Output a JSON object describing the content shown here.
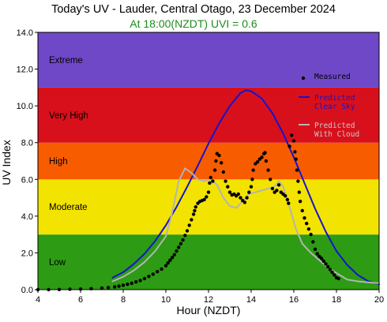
{
  "chart_data": {
    "type": "scatter",
    "title": "Today's UV - Lauder, Central Otago, 23 December 2024",
    "subtitle": "At 18:00(NZDT) UVI =  0.6",
    "xlabel": "Hour (NZDT)",
    "ylabel": "UV Index",
    "xlim": [
      4,
      20
    ],
    "ylim": [
      0,
      14
    ],
    "x_ticks": [
      4,
      6,
      8,
      10,
      12,
      14,
      16,
      18,
      20
    ],
    "y_ticks": [
      "0.0",
      "2.0",
      "4.0",
      "6.0",
      "8.0",
      "10.0",
      "12.0",
      "14.0"
    ],
    "bands": [
      {
        "label": "Low",
        "from": 0,
        "to": 3,
        "color": "#2d9b14"
      },
      {
        "label": "Moderate",
        "from": 3,
        "to": 6,
        "color": "#f2e300"
      },
      {
        "label": "High",
        "from": 6,
        "to": 8,
        "color": "#f85c00"
      },
      {
        "label": "Very High",
        "from": 8,
        "to": 11,
        "color": "#d8101c"
      },
      {
        "label": "Extreme",
        "from": 11,
        "to": 14,
        "color": "#6f48c8"
      }
    ],
    "legend": {
      "position": "top-right",
      "entries": [
        {
          "label": [
            "Measured"
          ],
          "color": "#000000",
          "kind": "marker"
        },
        {
          "label": [
            "Predicted",
            "Clear Sky"
          ],
          "color": "#1414d0",
          "kind": "line"
        },
        {
          "label": [
            "Predicted",
            "With Cloud"
          ],
          "color": "#b4b4b4",
          "kind": "line"
        }
      ]
    },
    "series": [
      {
        "name": "Measured",
        "kind": "points",
        "color": "#000000",
        "points": [
          [
            4.0,
            0.0
          ],
          [
            4.5,
            0.0
          ],
          [
            5.0,
            0.01
          ],
          [
            5.5,
            0.02
          ],
          [
            6.0,
            0.03
          ],
          [
            6.5,
            0.05
          ],
          [
            7.0,
            0.08
          ],
          [
            7.3,
            0.11
          ],
          [
            7.6,
            0.15
          ],
          [
            7.8,
            0.19
          ],
          [
            8.0,
            0.24
          ],
          [
            8.2,
            0.29
          ],
          [
            8.4,
            0.35
          ],
          [
            8.6,
            0.42
          ],
          [
            8.8,
            0.5
          ],
          [
            9.0,
            0.6
          ],
          [
            9.2,
            0.72
          ],
          [
            9.4,
            0.84
          ],
          [
            9.6,
            0.98
          ],
          [
            9.8,
            1.12
          ],
          [
            10.0,
            1.3
          ],
          [
            10.1,
            1.45
          ],
          [
            10.2,
            1.6
          ],
          [
            10.3,
            1.75
          ],
          [
            10.4,
            1.9
          ],
          [
            10.5,
            2.1
          ],
          [
            10.6,
            2.3
          ],
          [
            10.7,
            2.5
          ],
          [
            10.8,
            2.7
          ],
          [
            10.9,
            2.95
          ],
          [
            11.0,
            3.2
          ],
          [
            11.1,
            3.5
          ],
          [
            11.2,
            3.8
          ],
          [
            11.3,
            4.1
          ],
          [
            11.35,
            4.3
          ],
          [
            11.4,
            4.5
          ],
          [
            11.5,
            4.7
          ],
          [
            11.6,
            4.8
          ],
          [
            11.7,
            4.85
          ],
          [
            11.8,
            4.9
          ],
          [
            11.9,
            5.05
          ],
          [
            12.0,
            5.3
          ],
          [
            12.05,
            5.8
          ],
          [
            12.1,
            6.1
          ],
          [
            12.2,
            5.9
          ],
          [
            12.3,
            6.5
          ],
          [
            12.35,
            7.0
          ],
          [
            12.4,
            7.4
          ],
          [
            12.5,
            7.3
          ],
          [
            12.6,
            6.9
          ],
          [
            12.7,
            6.4
          ],
          [
            12.8,
            5.9
          ],
          [
            12.9,
            5.6
          ],
          [
            13.0,
            5.3
          ],
          [
            13.1,
            5.15
          ],
          [
            13.2,
            5.2
          ],
          [
            13.3,
            5.1
          ],
          [
            13.4,
            5.2
          ],
          [
            13.5,
            5.0
          ],
          [
            13.6,
            4.85
          ],
          [
            13.7,
            4.75
          ],
          [
            13.8,
            5.0
          ],
          [
            13.9,
            5.3
          ],
          [
            14.0,
            5.6
          ],
          [
            14.05,
            6.0
          ],
          [
            14.1,
            6.5
          ],
          [
            14.2,
            6.85
          ],
          [
            14.3,
            6.95
          ],
          [
            14.4,
            7.1
          ],
          [
            14.5,
            7.2
          ],
          [
            14.6,
            7.4
          ],
          [
            14.65,
            7.45
          ],
          [
            14.7,
            7.0
          ],
          [
            14.8,
            6.5
          ],
          [
            14.9,
            6.0
          ],
          [
            15.0,
            5.5
          ],
          [
            15.1,
            5.3
          ],
          [
            15.2,
            5.4
          ],
          [
            15.3,
            5.7
          ],
          [
            15.4,
            5.3
          ],
          [
            15.5,
            5.2
          ],
          [
            15.6,
            5.1
          ],
          [
            15.7,
            4.9
          ],
          [
            15.75,
            4.7
          ],
          [
            15.8,
            7.8
          ],
          [
            15.9,
            8.4
          ],
          [
            16.0,
            8.1
          ],
          [
            16.05,
            7.5
          ],
          [
            16.1,
            7.1
          ],
          [
            16.15,
            6.5
          ],
          [
            16.2,
            5.9
          ],
          [
            16.25,
            5.3
          ],
          [
            16.3,
            4.8
          ],
          [
            16.4,
            4.3
          ],
          [
            16.5,
            3.9
          ],
          [
            16.6,
            3.6
          ],
          [
            16.7,
            3.3
          ],
          [
            16.8,
            3.0
          ],
          [
            16.9,
            2.6
          ],
          [
            17.0,
            2.2
          ],
          [
            17.1,
            1.95
          ],
          [
            17.2,
            1.8
          ],
          [
            17.3,
            1.7
          ],
          [
            17.4,
            1.55
          ],
          [
            17.5,
            1.4
          ],
          [
            17.6,
            1.25
          ],
          [
            17.7,
            1.1
          ],
          [
            17.8,
            0.95
          ],
          [
            17.9,
            0.8
          ],
          [
            18.0,
            0.65
          ],
          [
            18.1,
            0.6
          ]
        ]
      },
      {
        "name": "Predicted Clear Sky",
        "kind": "line",
        "color": "#1414d0",
        "points": [
          [
            7.5,
            0.65
          ],
          [
            8.0,
            0.95
          ],
          [
            8.5,
            1.4
          ],
          [
            9.0,
            1.95
          ],
          [
            9.5,
            2.65
          ],
          [
            10.0,
            3.5
          ],
          [
            10.5,
            4.5
          ],
          [
            11.0,
            5.6
          ],
          [
            11.5,
            6.75
          ],
          [
            12.0,
            7.95
          ],
          [
            12.5,
            9.05
          ],
          [
            13.0,
            10.0
          ],
          [
            13.5,
            10.7
          ],
          [
            13.75,
            10.85
          ],
          [
            14.0,
            10.8
          ],
          [
            14.5,
            10.4
          ],
          [
            15.0,
            9.6
          ],
          [
            15.5,
            8.5
          ],
          [
            16.0,
            7.2
          ],
          [
            16.5,
            5.8
          ],
          [
            17.0,
            4.4
          ],
          [
            17.5,
            3.15
          ],
          [
            18.0,
            2.1
          ],
          [
            18.5,
            1.35
          ],
          [
            19.0,
            0.8
          ],
          [
            19.5,
            0.45
          ],
          [
            20.0,
            0.3
          ]
        ]
      },
      {
        "name": "Predicted With Cloud",
        "kind": "line",
        "color": "#b4b4b4",
        "points": [
          [
            7.5,
            0.45
          ],
          [
            8.0,
            0.7
          ],
          [
            8.5,
            1.05
          ],
          [
            9.0,
            1.5
          ],
          [
            9.5,
            2.1
          ],
          [
            10.0,
            2.9
          ],
          [
            10.3,
            4.2
          ],
          [
            10.6,
            5.9
          ],
          [
            10.9,
            6.6
          ],
          [
            11.2,
            6.35
          ],
          [
            11.5,
            6.0
          ],
          [
            11.8,
            5.9
          ],
          [
            12.1,
            6.0
          ],
          [
            12.4,
            5.7
          ],
          [
            12.7,
            5.0
          ],
          [
            13.0,
            4.55
          ],
          [
            13.3,
            4.45
          ],
          [
            13.6,
            4.8
          ],
          [
            13.9,
            5.2
          ],
          [
            14.2,
            5.3
          ],
          [
            14.5,
            5.4
          ],
          [
            14.8,
            5.5
          ],
          [
            15.1,
            5.6
          ],
          [
            15.3,
            5.9
          ],
          [
            15.5,
            5.6
          ],
          [
            15.8,
            4.5
          ],
          [
            16.1,
            3.3
          ],
          [
            16.4,
            2.5
          ],
          [
            16.8,
            2.0
          ],
          [
            17.2,
            1.6
          ],
          [
            17.6,
            1.2
          ],
          [
            18.0,
            0.9
          ],
          [
            18.5,
            0.55
          ],
          [
            19.0,
            0.45
          ],
          [
            19.5,
            0.4
          ],
          [
            20.0,
            0.35
          ]
        ]
      }
    ]
  }
}
